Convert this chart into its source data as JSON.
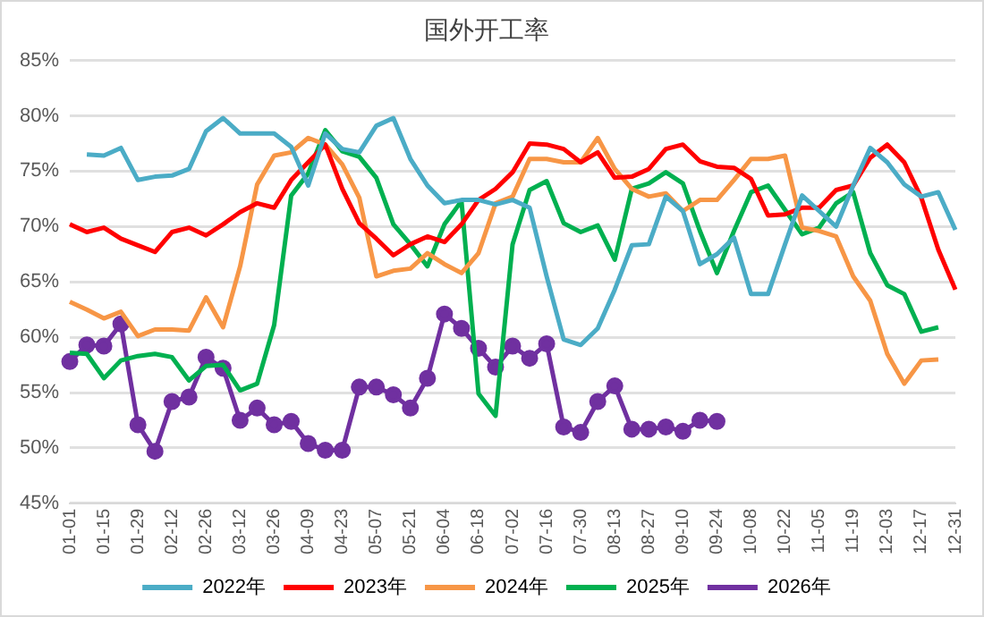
{
  "chart_data": {
    "type": "line",
    "title": "国外开工率",
    "categories": [
      "01-01",
      null,
      "01-15",
      null,
      "01-29",
      null,
      "02-12",
      null,
      "02-26",
      null,
      "03-12",
      null,
      "03-26",
      null,
      "04-09",
      null,
      "04-23",
      null,
      "05-07",
      null,
      "05-21",
      null,
      "06-04",
      null,
      "06-18",
      null,
      "07-02",
      null,
      "07-16",
      null,
      "07-30",
      null,
      "08-13",
      null,
      "08-27",
      null,
      "09-10",
      null,
      "09-24",
      null,
      "10-08",
      null,
      "10-22",
      null,
      "11-05",
      null,
      "11-19",
      null,
      "12-03",
      null,
      "12-17",
      null,
      "12-31"
    ],
    "series": [
      {
        "name": "2022年",
        "color": "#4bacc6",
        "marker": "none",
        "values": [
          null,
          76.5,
          76.4,
          77.1,
          74.2,
          74.5,
          74.6,
          75.2,
          78.6,
          79.8,
          78.4,
          78.4,
          78.4,
          77.2,
          73.7,
          78.4,
          77,
          76.7,
          79.1,
          79.8,
          76.1,
          73.7,
          72.1,
          72.4,
          72.4,
          72,
          72.4,
          71.7,
          65.5,
          59.8,
          59.3,
          60.8,
          64.3,
          68.3,
          68.4,
          72.7,
          71.4,
          66.6,
          67.5,
          69,
          63.9,
          63.9,
          68.4,
          72.8,
          71.4,
          70,
          73.7,
          77.1,
          75.8,
          73.8,
          72.7,
          73.1,
          69.7
        ]
      },
      {
        "name": "2023年",
        "color": "#ff0000",
        "marker": "none",
        "values": [
          70.2,
          69.5,
          69.9,
          68.9,
          68.3,
          67.7,
          69.5,
          69.9,
          69.2,
          70.2,
          71.3,
          72.1,
          71.7,
          74.2,
          75.8,
          77.4,
          73.4,
          70.3,
          68.9,
          67.4,
          68.4,
          69.1,
          68.6,
          70.2,
          72.4,
          73.4,
          74.9,
          77.5,
          77.4,
          77,
          75.8,
          76.7,
          74.4,
          74.5,
          75.2,
          77,
          77.4,
          75.9,
          75.4,
          75.3,
          74.3,
          71,
          71.1,
          71.7,
          71.7,
          73.3,
          73.7,
          76.2,
          77.4,
          75.8,
          72.6,
          67.9,
          64.3
        ]
      },
      {
        "name": "2024年",
        "color": "#f79646",
        "marker": "none",
        "values": [
          63.2,
          62.5,
          61.7,
          62.3,
          60.1,
          60.7,
          60.7,
          60.6,
          63.6,
          60.9,
          66.4,
          73.8,
          76.4,
          76.7,
          78,
          77.4,
          75.6,
          72.6,
          65.5,
          66,
          66.2,
          67.6,
          66.6,
          65.8,
          67.6,
          72.1,
          72.7,
          76.1,
          76.1,
          75.8,
          75.8,
          78,
          75.2,
          73.4,
          72.7,
          73,
          71.4,
          72.4,
          72.4,
          74.2,
          76.1,
          76.1,
          76.4,
          69.9,
          69.6,
          69.1,
          65.5,
          63.3,
          58.5,
          55.8,
          57.9,
          58,
          null
        ]
      },
      {
        "name": "2025年",
        "color": "#00b050",
        "marker": "none",
        "values": [
          58.6,
          58.5,
          56.3,
          57.9,
          58.3,
          58.5,
          58.2,
          56.1,
          57.4,
          57.5,
          55.2,
          55.8,
          61.1,
          72.8,
          74.8,
          78.7,
          76.8,
          76.3,
          74.4,
          70.2,
          68.4,
          66.4,
          70.2,
          72.3,
          54.9,
          52.9,
          68.4,
          73.3,
          74.1,
          70.3,
          69.5,
          70.1,
          67,
          73.4,
          73.9,
          74.9,
          73.9,
          69.6,
          65.8,
          69.6,
          73.1,
          73.7,
          71.5,
          69.3,
          69.9,
          72.1,
          73.1,
          67.6,
          64.7,
          63.9,
          60.5,
          60.9,
          null
        ]
      },
      {
        "name": "2026年",
        "color": "#7030a0",
        "marker": "circle",
        "values": [
          57.8,
          59.3,
          59.2,
          61.2,
          52.1,
          49.7,
          54.2,
          54.6,
          58.2,
          57.2,
          52.5,
          53.6,
          52.1,
          52.4,
          50.4,
          49.8,
          49.8,
          55.5,
          55.5,
          54.8,
          53.6,
          56.3,
          62.1,
          60.8,
          59,
          57.3,
          59.2,
          58.1,
          59.4,
          51.9,
          51.4,
          54.2,
          55.6,
          51.7,
          51.7,
          51.9,
          51.5,
          52.5,
          52.4,
          null,
          null,
          null,
          null,
          null,
          null,
          null,
          null,
          null,
          null,
          null,
          null,
          null,
          null
        ]
      }
    ],
    "ylim": [
      45,
      85
    ],
    "yticks": [
      {
        "value": 45,
        "label": "45%"
      },
      {
        "value": 50,
        "label": "50%"
      },
      {
        "value": 55,
        "label": "55%"
      },
      {
        "value": 60,
        "label": "60%"
      },
      {
        "value": 65,
        "label": "65%"
      },
      {
        "value": 70,
        "label": "70%"
      },
      {
        "value": 75,
        "label": "75%"
      },
      {
        "value": 80,
        "label": "80%"
      },
      {
        "value": 85,
        "label": "85%"
      }
    ],
    "grid": "y",
    "legend": "bottom"
  }
}
